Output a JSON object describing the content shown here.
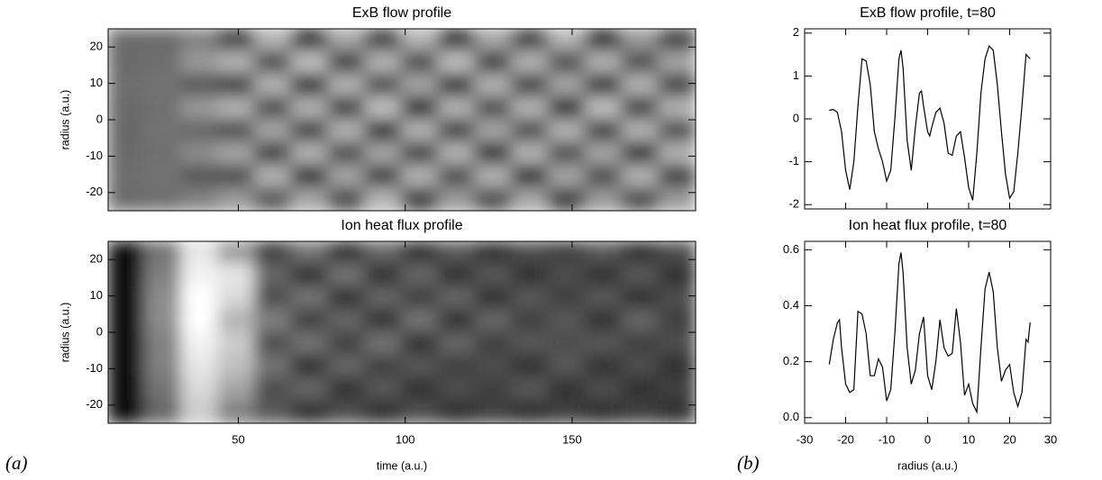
{
  "chart_data": [
    {
      "type": "heatmap",
      "title": "ExB flow profile",
      "ylabel": "radius (a.u.)",
      "colormap": "gray",
      "xlim": [
        11,
        187
      ],
      "ylim": [
        -25,
        25
      ],
      "xticks": [
        50,
        100,
        150
      ],
      "yticks": [
        -20,
        -10,
        0,
        10,
        20
      ],
      "show_xtick_labels": false,
      "z": [
        [
          0.42,
          0.42,
          0.5,
          0.25,
          0.7,
          0.2,
          0.65,
          0.25,
          0.7,
          0.2,
          0.65,
          0.25,
          0.7,
          0.2,
          0.6,
          0.25
        ],
        [
          0.42,
          0.43,
          0.6,
          0.7,
          0.3,
          0.75,
          0.25,
          0.7,
          0.3,
          0.75,
          0.25,
          0.7,
          0.3,
          0.7,
          0.3,
          0.65
        ],
        [
          0.43,
          0.45,
          0.35,
          0.25,
          0.7,
          0.2,
          0.7,
          0.3,
          0.65,
          0.2,
          0.7,
          0.25,
          0.65,
          0.2,
          0.7,
          0.25
        ],
        [
          0.42,
          0.44,
          0.6,
          0.7,
          0.3,
          0.7,
          0.25,
          0.75,
          0.2,
          0.7,
          0.3,
          0.7,
          0.2,
          0.75,
          0.25,
          0.7
        ],
        [
          0.41,
          0.45,
          0.4,
          0.3,
          0.65,
          0.25,
          0.7,
          0.2,
          0.7,
          0.25,
          0.65,
          0.3,
          0.7,
          0.25,
          0.7,
          0.3
        ],
        [
          0.42,
          0.44,
          0.55,
          0.65,
          0.25,
          0.7,
          0.3,
          0.65,
          0.25,
          0.7,
          0.2,
          0.7,
          0.3,
          0.65,
          0.2,
          0.7
        ],
        [
          0.43,
          0.45,
          0.35,
          0.3,
          0.7,
          0.2,
          0.65,
          0.25,
          0.7,
          0.3,
          0.7,
          0.2,
          0.65,
          0.3,
          0.7,
          0.25
        ],
        [
          0.42,
          0.43,
          0.5,
          0.6,
          0.35,
          0.65,
          0.3,
          0.7,
          0.25,
          0.6,
          0.3,
          0.65,
          0.25,
          0.6,
          0.3,
          0.6
        ]
      ]
    },
    {
      "type": "heatmap",
      "title": "Ion heat flux profile",
      "xlabel": "time (a.u.)",
      "ylabel": "radius (a.u.)",
      "colormap": "gray",
      "xlim": [
        11,
        187
      ],
      "ylim": [
        -25,
        25
      ],
      "xticks": [
        50,
        100,
        150
      ],
      "yticks": [
        -20,
        -10,
        0,
        10,
        20
      ],
      "show_xtick_labels": true,
      "z": [
        [
          0.05,
          0.45,
          0.9,
          0.6,
          0.25,
          0.45,
          0.2,
          0.4,
          0.2,
          0.35,
          0.2,
          0.3,
          0.25,
          0.35,
          0.2,
          0.3
        ],
        [
          0.05,
          0.5,
          0.95,
          0.9,
          0.4,
          0.2,
          0.45,
          0.2,
          0.4,
          0.2,
          0.35,
          0.2,
          0.3,
          0.2,
          0.35,
          0.2
        ],
        [
          0.06,
          0.55,
          1.0,
          0.85,
          0.3,
          0.45,
          0.2,
          0.4,
          0.25,
          0.4,
          0.2,
          0.35,
          0.25,
          0.35,
          0.2,
          0.3
        ],
        [
          0.05,
          0.55,
          1.0,
          0.7,
          0.5,
          0.25,
          0.4,
          0.2,
          0.45,
          0.2,
          0.4,
          0.25,
          0.35,
          0.2,
          0.4,
          0.25
        ],
        [
          0.06,
          0.5,
          0.95,
          0.8,
          0.3,
          0.45,
          0.25,
          0.45,
          0.2,
          0.4,
          0.25,
          0.35,
          0.3,
          0.35,
          0.25,
          0.3
        ],
        [
          0.05,
          0.5,
          0.9,
          0.75,
          0.45,
          0.2,
          0.4,
          0.25,
          0.35,
          0.25,
          0.3,
          0.2,
          0.35,
          0.2,
          0.3,
          0.2
        ],
        [
          0.05,
          0.45,
          0.85,
          0.65,
          0.3,
          0.4,
          0.2,
          0.35,
          0.2,
          0.3,
          0.25,
          0.35,
          0.2,
          0.3,
          0.2,
          0.25
        ],
        [
          0.05,
          0.4,
          0.8,
          0.5,
          0.35,
          0.2,
          0.3,
          0.2,
          0.3,
          0.2,
          0.25,
          0.2,
          0.25,
          0.2,
          0.25,
          0.2
        ]
      ]
    },
    {
      "type": "line",
      "title": "ExB flow profile, t=80",
      "color": "#000000",
      "xlim": [
        -30,
        30
      ],
      "ylim": [
        -2.1,
        2.1
      ],
      "xticks": [
        -30,
        -20,
        -10,
        0,
        10,
        20,
        30
      ],
      "yticks": [
        -2,
        -1,
        0,
        1,
        2
      ],
      "show_xtick_labels": false,
      "x": [
        -24,
        -23,
        -22,
        -21,
        -20,
        -19,
        -18,
        -17,
        -16,
        -15,
        -14,
        -13,
        -12,
        -11,
        -10,
        -9,
        -8,
        -7,
        -6.5,
        -6,
        -5,
        -4,
        -3,
        -2,
        -1.5,
        -1,
        0,
        0.5,
        1,
        2,
        3,
        4,
        5,
        6,
        7,
        8,
        9,
        10,
        11,
        12,
        13,
        14,
        15,
        16,
        17,
        18,
        19,
        20,
        21,
        22,
        23,
        24,
        25
      ],
      "values": [
        0.2,
        0.22,
        0.15,
        -0.3,
        -1.2,
        -1.65,
        -1.0,
        0.3,
        1.4,
        1.35,
        0.8,
        -0.3,
        -0.7,
        -1.0,
        -1.45,
        -1.2,
        0.0,
        1.4,
        1.6,
        1.2,
        -0.5,
        -1.2,
        -0.2,
        0.6,
        0.65,
        0.3,
        -0.3,
        -0.4,
        -0.2,
        0.15,
        0.25,
        -0.1,
        -0.8,
        -0.85,
        -0.4,
        -0.3,
        -0.9,
        -1.6,
        -1.9,
        -0.8,
        0.6,
        1.4,
        1.7,
        1.6,
        0.8,
        -0.3,
        -1.3,
        -1.85,
        -1.7,
        -0.8,
        0.3,
        1.5,
        1.4
      ]
    },
    {
      "type": "line",
      "title": "Ion heat flux profile, t=80",
      "xlabel": "radius (a.u.)",
      "color": "#000000",
      "xlim": [
        -30,
        30
      ],
      "ylim": [
        -0.02,
        0.63
      ],
      "xticks": [
        -30,
        -20,
        -10,
        0,
        10,
        20,
        30
      ],
      "yticks": [
        {
          "value": 0,
          "label": "0.0"
        },
        0.2,
        0.4,
        0.6
      ],
      "show_xtick_labels": true,
      "x": [
        -24,
        -23,
        -22,
        -21.5,
        -21,
        -20,
        -19,
        -18,
        -17,
        -16,
        -15,
        -14,
        -13,
        -12,
        -11,
        -10,
        -9,
        -8,
        -7,
        -6.5,
        -6,
        -5,
        -4,
        -3,
        -2,
        -1,
        0,
        1,
        2,
        3,
        4,
        5,
        6,
        7,
        8,
        9,
        10,
        11,
        12,
        13,
        14,
        15,
        16,
        17,
        18,
        19,
        20,
        21,
        22,
        23,
        24,
        24.5,
        25
      ],
      "values": [
        0.19,
        0.28,
        0.34,
        0.35,
        0.25,
        0.12,
        0.09,
        0.1,
        0.38,
        0.37,
        0.3,
        0.15,
        0.15,
        0.21,
        0.18,
        0.06,
        0.1,
        0.3,
        0.55,
        0.59,
        0.52,
        0.25,
        0.12,
        0.17,
        0.3,
        0.36,
        0.15,
        0.1,
        0.2,
        0.35,
        0.25,
        0.22,
        0.23,
        0.39,
        0.27,
        0.08,
        0.12,
        0.05,
        0.02,
        0.25,
        0.46,
        0.52,
        0.45,
        0.25,
        0.13,
        0.17,
        0.19,
        0.09,
        0.04,
        0.09,
        0.28,
        0.27,
        0.34
      ]
    }
  ],
  "panel_labels": [
    "(a)",
    "(b)"
  ]
}
